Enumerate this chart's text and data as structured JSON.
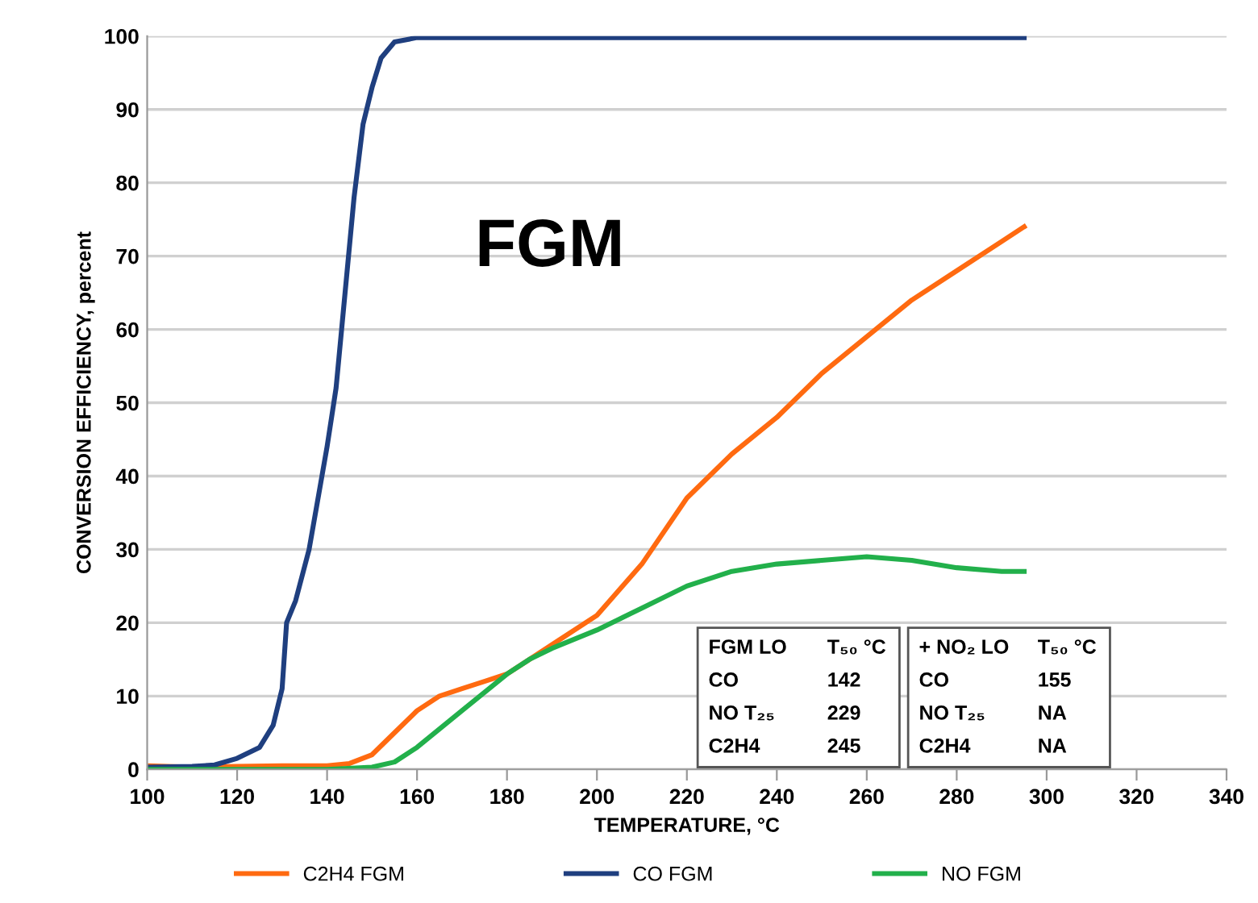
{
  "chart_data": {
    "type": "line",
    "xlabel": "TEMPERATURE, °C",
    "ylabel": "CONVERSION EFFICIENCY, percent",
    "xlim": [
      100,
      340
    ],
    "xticks": [
      100,
      120,
      140,
      160,
      180,
      200,
      220,
      240,
      260,
      280,
      300,
      320,
      340
    ],
    "ylim": [
      0,
      100
    ],
    "yticks": [
      0,
      10,
      20,
      30,
      40,
      50,
      60,
      70,
      80,
      90,
      100
    ],
    "grid": "y",
    "legend": "bottom",
    "line_style": "solid",
    "annotations": [
      "FGM",
      "FGM LO",
      "T₅₀ °C",
      "CO",
      "142",
      "NO T₂₅",
      "229",
      "C2H4",
      "245",
      "+ NO₂ LO",
      "T₅₀ °C",
      "CO",
      "155",
      "NO T₂₅",
      "NA",
      "C2H4",
      "NA"
    ],
    "series": [
      {
        "name": "C2H4 FGM",
        "color": "#ff6a10",
        "x": [
          100,
          110,
          120,
          130,
          140,
          145,
          150,
          155,
          160,
          165,
          170,
          175,
          180,
          185,
          190,
          200,
          210,
          220,
          230,
          240,
          250,
          260,
          270,
          280,
          290,
          295
        ],
        "values": [
          0.5,
          0.3,
          0.4,
          0.5,
          0.5,
          0.8,
          2,
          5,
          8,
          10,
          11,
          12,
          13,
          15,
          17,
          21,
          28,
          37,
          43,
          48,
          54,
          59,
          64,
          68,
          72,
          74
        ]
      },
      {
        "name": "CO FGM",
        "color": "#1f3f7f",
        "x": [
          100,
          110,
          115,
          120,
          125,
          128,
          130,
          131,
          133,
          136,
          140,
          142,
          144,
          146,
          148,
          150,
          152,
          155,
          160,
          200,
          250,
          295
        ],
        "values": [
          0.3,
          0.4,
          0.6,
          1.5,
          3,
          6,
          11,
          20,
          23,
          30,
          44,
          52,
          65,
          78,
          88,
          93,
          97,
          99.2,
          99.8,
          99.8,
          99.8,
          99.8
        ]
      },
      {
        "name": "NO FGM",
        "color": "#22b04b",
        "x": [
          100,
          120,
          140,
          150,
          155,
          160,
          170,
          180,
          185,
          190,
          200,
          210,
          220,
          230,
          240,
          250,
          260,
          270,
          280,
          290,
          295
        ],
        "values": [
          0,
          0,
          0,
          0.3,
          1,
          3,
          8,
          13,
          15,
          16.5,
          19,
          22,
          25,
          27,
          28,
          28.5,
          29,
          28.5,
          27.5,
          27,
          27
        ]
      }
    ]
  }
}
